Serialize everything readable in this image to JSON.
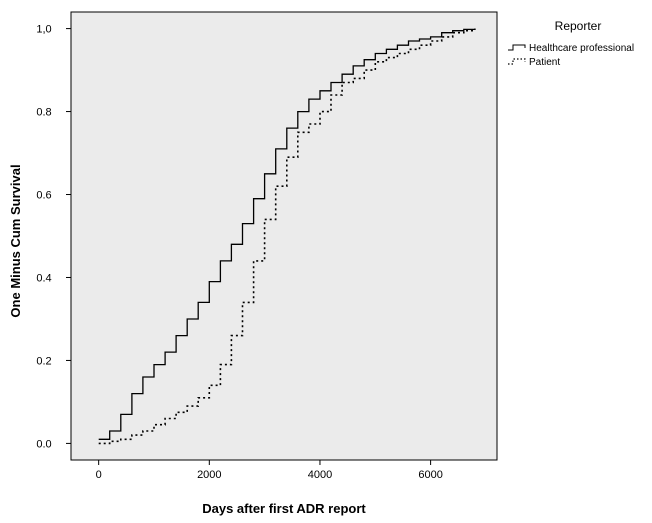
{
  "chart_data": {
    "type": "line",
    "title": "",
    "xlabel": "Days after first ADR report",
    "ylabel": "One Minus Cum Survival",
    "xlim": [
      -500,
      7200
    ],
    "ylim": [
      -0.04,
      1.04
    ],
    "x_ticks": [
      0,
      2000,
      4000,
      6000
    ],
    "y_ticks": [
      0.0,
      0.2,
      0.4,
      0.6,
      0.8,
      1.0
    ],
    "y_tick_labels": [
      "0.0",
      "0.2",
      "0.4",
      "0.6",
      "0.8",
      "1,0"
    ],
    "grid": false,
    "background": "#ebebeb",
    "legend": {
      "title": "Reporter",
      "position": "right",
      "entries": [
        {
          "name": "Healthcare professional",
          "style": "solid"
        },
        {
          "name": "Patient",
          "style": "dotted"
        }
      ]
    },
    "series": [
      {
        "name": "Healthcare professional",
        "style": "solid",
        "color": "#000000",
        "x": [
          0,
          200,
          400,
          600,
          800,
          1000,
          1200,
          1400,
          1600,
          1800,
          2000,
          2200,
          2400,
          2600,
          2800,
          3000,
          3200,
          3400,
          3600,
          3800,
          4000,
          4200,
          4400,
          4600,
          4800,
          5000,
          5200,
          5400,
          5600,
          5800,
          6000,
          6200,
          6400,
          6600,
          6800
        ],
        "values": [
          0.01,
          0.03,
          0.07,
          0.12,
          0.16,
          0.19,
          0.22,
          0.26,
          0.3,
          0.34,
          0.39,
          0.44,
          0.48,
          0.53,
          0.59,
          0.65,
          0.71,
          0.76,
          0.8,
          0.83,
          0.85,
          0.87,
          0.89,
          0.91,
          0.925,
          0.94,
          0.95,
          0.96,
          0.97,
          0.975,
          0.98,
          0.99,
          0.995,
          0.998,
          1.0
        ]
      },
      {
        "name": "Patient",
        "style": "dotted",
        "color": "#000000",
        "x": [
          0,
          200,
          400,
          600,
          800,
          1000,
          1200,
          1400,
          1600,
          1800,
          2000,
          2200,
          2400,
          2600,
          2800,
          3000,
          3200,
          3400,
          3600,
          3800,
          4000,
          4200,
          4400,
          4600,
          4800,
          5000,
          5200,
          5400,
          5600,
          5800,
          6000,
          6200,
          6400,
          6600,
          6800
        ],
        "values": [
          0.0,
          0.005,
          0.01,
          0.02,
          0.03,
          0.045,
          0.06,
          0.075,
          0.09,
          0.11,
          0.14,
          0.19,
          0.26,
          0.34,
          0.44,
          0.54,
          0.62,
          0.69,
          0.75,
          0.77,
          0.8,
          0.84,
          0.87,
          0.88,
          0.9,
          0.92,
          0.93,
          0.94,
          0.95,
          0.96,
          0.97,
          0.98,
          0.99,
          0.995,
          1.0
        ]
      }
    ]
  }
}
